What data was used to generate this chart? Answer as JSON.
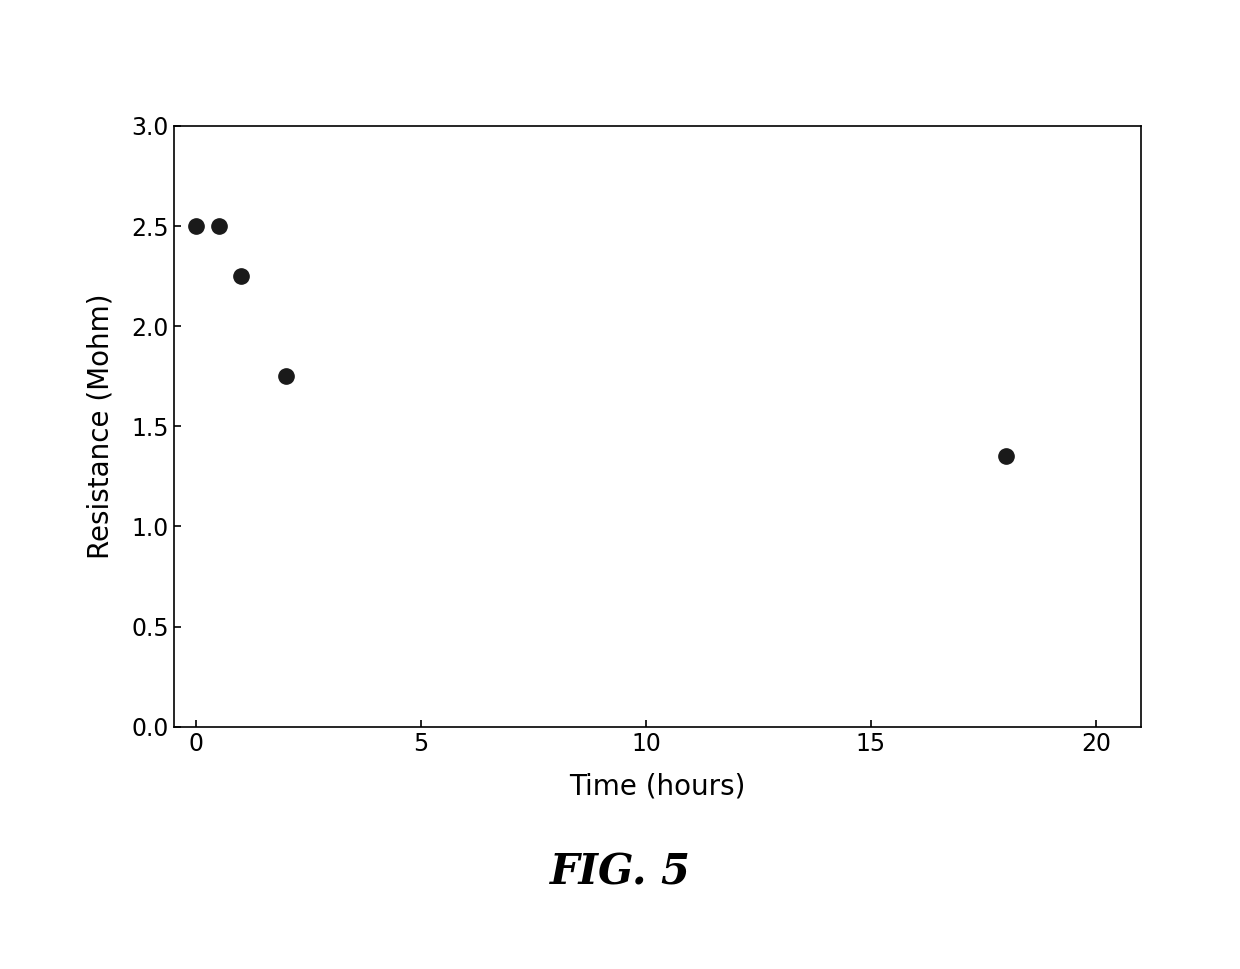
{
  "x": [
    0,
    0.5,
    1,
    2,
    18
  ],
  "y": [
    2.5,
    2.5,
    2.25,
    1.75,
    1.35
  ],
  "xlabel": "Time (hours)",
  "ylabel": "Resistance (Mohm)",
  "xlim": [
    -0.5,
    21
  ],
  "ylim": [
    0.0,
    3.0
  ],
  "xticks": [
    0,
    5,
    10,
    15,
    20
  ],
  "yticks": [
    0.0,
    0.5,
    1.0,
    1.5,
    2.0,
    2.5,
    3.0
  ],
  "fig_caption": "FIG. 5",
  "marker_color": "#1a1a1a",
  "marker_size": 11,
  "background_color": "#ffffff",
  "axis_label_fontsize": 20,
  "tick_fontsize": 17,
  "caption_fontsize": 30
}
